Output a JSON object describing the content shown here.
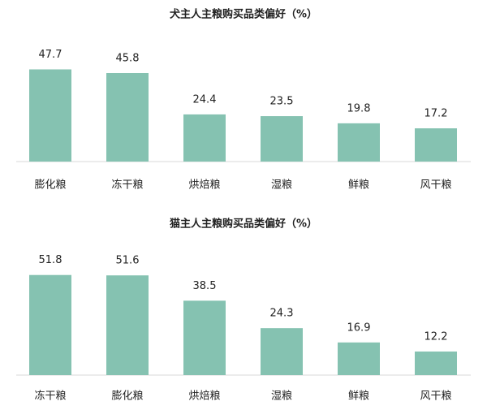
{
  "chart_data": [
    {
      "type": "bar",
      "title": "犬主人主粮购买品类偏好（%）",
      "categories": [
        "膨化粮",
        "冻干粮",
        "烘焙粮",
        "湿粮",
        "鲜粮",
        "风干粮"
      ],
      "values": [
        47.7,
        45.8,
        24.4,
        23.5,
        19.8,
        17.2
      ],
      "color": "#85c2b1"
    },
    {
      "type": "bar",
      "title": "猫主人主粮购买品类偏好（%）",
      "categories": [
        "冻干粮",
        "膨化粮",
        "烘焙粮",
        "湿粮",
        "鲜粮",
        "风干粮"
      ],
      "values": [
        51.8,
        51.6,
        38.5,
        24.3,
        16.9,
        12.2
      ],
      "color": "#85c2b1"
    }
  ]
}
